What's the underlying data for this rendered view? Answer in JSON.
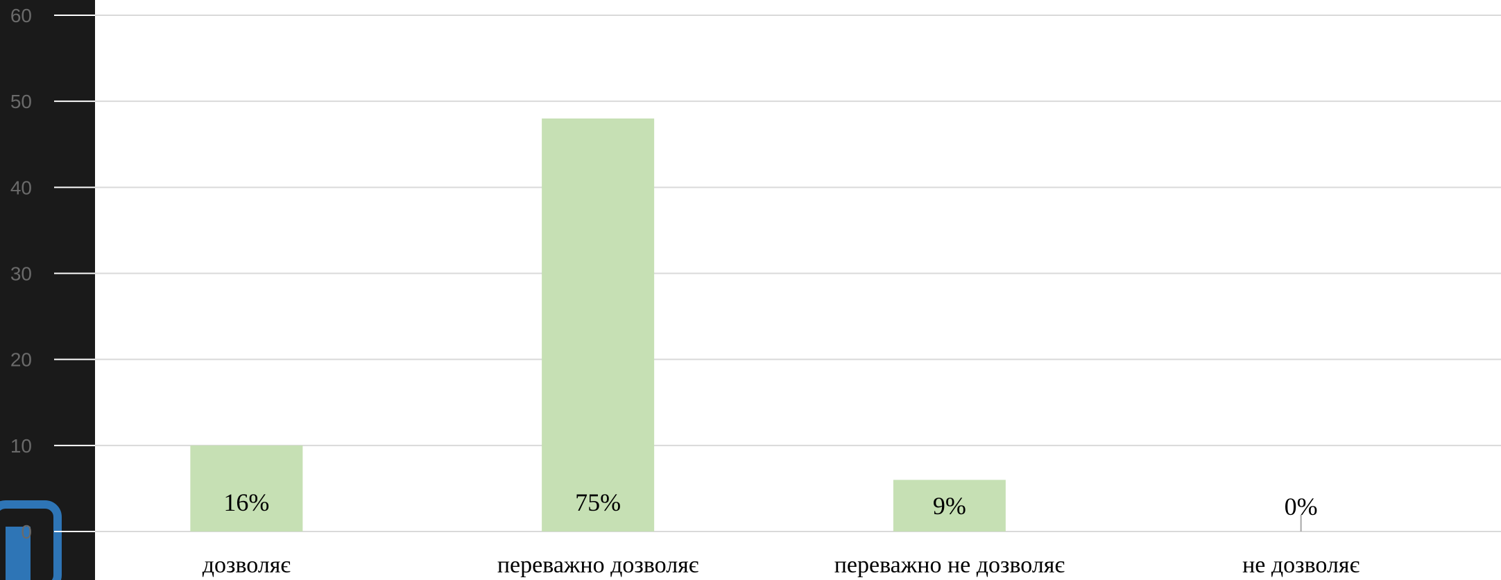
{
  "chart_data": {
    "type": "bar",
    "categories": [
      "дозволяє",
      "переважно дозволяє",
      "переважно не дозволяє",
      "не дозволяє"
    ],
    "values": [
      10,
      48,
      6,
      0
    ],
    "data_labels": [
      "16%",
      "75%",
      "9%",
      "0%"
    ],
    "title": "",
    "xlabel": "",
    "ylabel": "",
    "ylim": [
      0,
      60
    ],
    "yticks": [
      "0",
      "10",
      "20",
      "30",
      "40",
      "50",
      "60"
    ],
    "grid": true,
    "legend": "none",
    "colors": {
      "bar": "#c6e0b4",
      "grid": "#d9d9d9",
      "axis_tick_text": "#6a6a6a",
      "panel": "#1a1a1a",
      "accent": "#2e75b6"
    }
  }
}
